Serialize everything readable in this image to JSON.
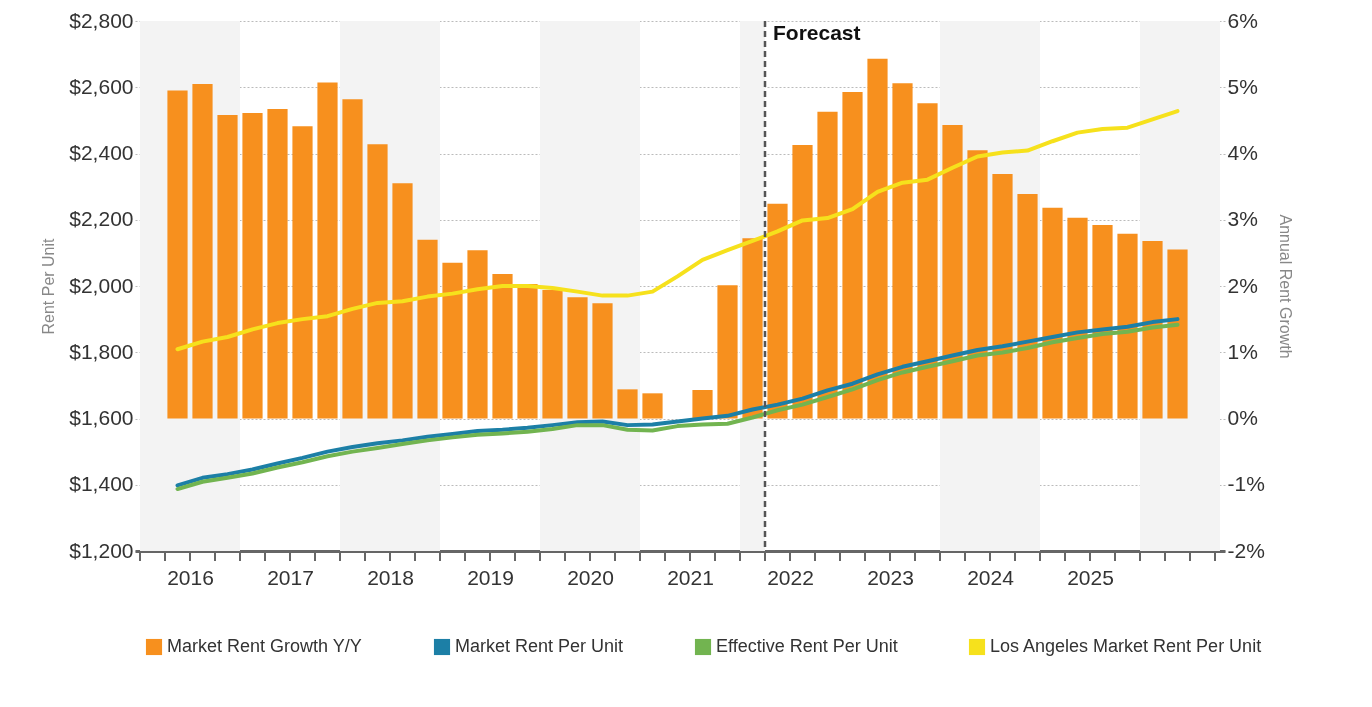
{
  "chart_data": {
    "type": "bar",
    "x": [
      2016.375,
      2016.625,
      2016.875,
      2017.125,
      2017.375,
      2017.625,
      2017.875,
      2018.125,
      2018.375,
      2018.625,
      2018.875,
      2019.125,
      2019.375,
      2019.625,
      2019.875,
      2020.125,
      2020.375,
      2020.625,
      2020.875,
      2021.125,
      2021.375,
      2021.625,
      2021.875,
      2022.125,
      2022.375,
      2022.625,
      2022.875,
      2023.125,
      2023.375,
      2023.625,
      2023.875,
      2024.125,
      2024.375,
      2024.625,
      2024.875,
      2025.125,
      2025.375,
      2025.625,
      2025.875,
      2026.125,
      2026.375
    ],
    "series": [
      {
        "name": "Market Rent Growth Y/Y",
        "type": "bar",
        "axis": "y2",
        "color": "#f7901e",
        "values": [
          4.95,
          5.05,
          4.58,
          4.61,
          4.67,
          4.41,
          5.07,
          4.82,
          4.14,
          3.55,
          2.7,
          2.35,
          2.54,
          2.18,
          2.03,
          1.94,
          1.83,
          1.74,
          0.44,
          0.38,
          0,
          0.43,
          2.01,
          2.72,
          3.24,
          4.13,
          4.63,
          4.93,
          5.43,
          5.06,
          4.76,
          4.43,
          4.05,
          3.69,
          3.39,
          3.18,
          3.03,
          2.92,
          2.79,
          2.68,
          2.55
        ]
      },
      {
        "name": "Market Rent Per Unit",
        "type": "line",
        "color": "#1c7fa6",
        "values": [
          1398,
          1421,
          1432,
          1446,
          1464,
          1481,
          1500,
          1514,
          1525,
          1534,
          1545,
          1553,
          1562,
          1566,
          1572,
          1580,
          1589,
          1591,
          1580,
          1582,
          1591,
          1600,
          1608,
          1627,
          1642,
          1660,
          1685,
          1705,
          1733,
          1756,
          1773,
          1790,
          1807,
          1818,
          1832,
          1846,
          1860,
          1869,
          1877,
          1891,
          1900
        ]
      },
      {
        "name": "Effective Rent Per Unit",
        "type": "line",
        "color": "#72b450",
        "values": [
          1387,
          1409,
          1421,
          1434,
          1452,
          1468,
          1486,
          1500,
          1511,
          1523,
          1534,
          1543,
          1551,
          1555,
          1560,
          1568,
          1580,
          1580,
          1566,
          1564,
          1577,
          1582,
          1584,
          1603,
          1625,
          1642,
          1665,
          1688,
          1716,
          1739,
          1756,
          1773,
          1790,
          1799,
          1813,
          1830,
          1843,
          1855,
          1862,
          1875,
          1883
        ]
      },
      {
        "name": "Los Angeles Market Rent Per Unit",
        "type": "line",
        "color": "#f6e11c",
        "values": [
          1809,
          1832,
          1846,
          1869,
          1888,
          1900,
          1909,
          1931,
          1949,
          1954,
          1968,
          1977,
          1990,
          2000,
          2000,
          1994,
          1983,
          1971,
          1971,
          1983,
          2029,
          2079,
          2108,
          2136,
          2165,
          2198,
          2205,
          2232,
          2284,
          2312,
          2321,
          2357,
          2391,
          2403,
          2409,
          2437,
          2463,
          2474,
          2478,
          2503,
          2528
        ]
      }
    ],
    "ylabel": "Rent Per Unit",
    "y2label": "Annual Rent Growth",
    "ylim": [
      1200,
      2800
    ],
    "yticks": [
      {
        "value": 1200,
        "label": "$1,200"
      },
      {
        "value": 1400,
        "label": "$1,400"
      },
      {
        "value": 1600,
        "label": "$1,600"
      },
      {
        "value": 1800,
        "label": "$1,800"
      },
      {
        "value": 2000,
        "label": "$2,000"
      },
      {
        "value": 2200,
        "label": "$2,200"
      },
      {
        "value": 2400,
        "label": "$2,400"
      },
      {
        "value": 2600,
        "label": "$2,600"
      },
      {
        "value": 2800,
        "label": "$2,800"
      }
    ],
    "y2lim": [
      -2,
      6
    ],
    "y2ticks": [
      {
        "value": -2,
        "label": "-2%"
      },
      {
        "value": -1,
        "label": "-1%"
      },
      {
        "value": 0,
        "label": "0%"
      },
      {
        "value": 1,
        "label": "1%"
      },
      {
        "value": 2,
        "label": "2%"
      },
      {
        "value": 3,
        "label": "3%"
      },
      {
        "value": 4,
        "label": "4%"
      },
      {
        "value": 5,
        "label": "5%"
      },
      {
        "value": 6,
        "label": "6%"
      }
    ],
    "xlim": [
      2016,
      2026.8
    ],
    "xticks": [
      {
        "value": 2016,
        "label": null
      },
      {
        "value": 2016.25,
        "label": null
      },
      {
        "value": 2016.5,
        "label": "2016"
      },
      {
        "value": 2016.75,
        "label": null
      },
      {
        "value": 2017,
        "label": null
      },
      {
        "value": 2017.25,
        "label": null
      },
      {
        "value": 2017.5,
        "label": "2017"
      },
      {
        "value": 2017.75,
        "label": null
      },
      {
        "value": 2018,
        "label": null
      },
      {
        "value": 2018.25,
        "label": null
      },
      {
        "value": 2018.5,
        "label": "2018"
      },
      {
        "value": 2018.75,
        "label": null
      },
      {
        "value": 2019,
        "label": null
      },
      {
        "value": 2019.25,
        "label": null
      },
      {
        "value": 2019.5,
        "label": "2019"
      },
      {
        "value": 2019.75,
        "label": null
      },
      {
        "value": 2020,
        "label": null
      },
      {
        "value": 2020.25,
        "label": null
      },
      {
        "value": 2020.5,
        "label": "2020"
      },
      {
        "value": 2020.75,
        "label": null
      },
      {
        "value": 2021,
        "label": null
      },
      {
        "value": 2021.25,
        "label": null
      },
      {
        "value": 2021.5,
        "label": "2021"
      },
      {
        "value": 2021.75,
        "label": null
      },
      {
        "value": 2022,
        "label": null
      },
      {
        "value": 2022.25,
        "label": null
      },
      {
        "value": 2022.5,
        "label": "2022"
      },
      {
        "value": 2022.75,
        "label": null
      },
      {
        "value": 2023,
        "label": null
      },
      {
        "value": 2023.25,
        "label": null
      },
      {
        "value": 2023.5,
        "label": "2023"
      },
      {
        "value": 2023.75,
        "label": null
      },
      {
        "value": 2024,
        "label": null
      },
      {
        "value": 2024.25,
        "label": null
      },
      {
        "value": 2024.5,
        "label": "2024"
      },
      {
        "value": 2024.75,
        "label": null
      },
      {
        "value": 2025,
        "label": null
      },
      {
        "value": 2025.25,
        "label": null
      },
      {
        "value": 2025.5,
        "label": "2025"
      },
      {
        "value": 2025.75,
        "label": null
      },
      {
        "value": 2026,
        "label": null
      },
      {
        "value": 2026.25,
        "label": null
      },
      {
        "value": 2026.5,
        "label": null
      },
      {
        "value": 2026.75,
        "label": null
      }
    ],
    "ref_lines": [
      {
        "axis": "x",
        "value": 2022.25,
        "label": "Forecast",
        "line_style": "dashed",
        "color": "#555555"
      }
    ],
    "bands": [
      {
        "axis": "x",
        "from": 2016,
        "to": 2017,
        "color": "#f3f3f3"
      },
      {
        "axis": "x",
        "from": 2018,
        "to": 2019,
        "color": "#f3f3f3"
      },
      {
        "axis": "x",
        "from": 2020,
        "to": 2021,
        "color": "#f3f3f3"
      },
      {
        "axis": "x",
        "from": 2022,
        "to": 2022.25,
        "color": "#f3f3f3"
      },
      {
        "axis": "x",
        "from": 2024,
        "to": 2025,
        "color": "#f3f3f3"
      },
      {
        "axis": "x",
        "from": 2026,
        "to": 2026.8,
        "color": "#f3f3f3"
      }
    ],
    "grid": "y",
    "legend": "bottom"
  }
}
